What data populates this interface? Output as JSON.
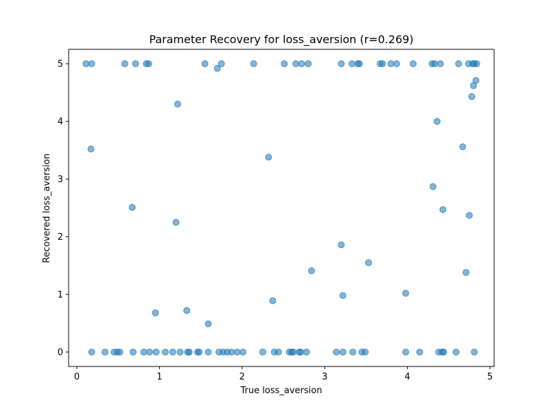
{
  "chart_data": {
    "type": "scatter",
    "title": "Parameter Recovery for loss_aversion (r=0.269)",
    "xlabel": "True loss_aversion",
    "ylabel": "Recovered loss_aversion",
    "xlim": [
      -0.1,
      5.05
    ],
    "ylim": [
      -0.25,
      5.25
    ],
    "xticks": [
      0,
      1,
      2,
      3,
      4,
      5
    ],
    "yticks": [
      0,
      1,
      2,
      3,
      4,
      5
    ],
    "grid": false,
    "marker_color": "#1f77b4",
    "marker_alpha": 0.55,
    "points": [
      {
        "x": 0.11,
        "y": 5.0
      },
      {
        "x": 0.18,
        "y": 5.0
      },
      {
        "x": 0.58,
        "y": 5.0
      },
      {
        "x": 0.71,
        "y": 5.0
      },
      {
        "x": 0.84,
        "y": 5.0
      },
      {
        "x": 0.87,
        "y": 5.0
      },
      {
        "x": 1.55,
        "y": 5.0
      },
      {
        "x": 1.75,
        "y": 5.0
      },
      {
        "x": 1.7,
        "y": 4.92
      },
      {
        "x": 2.14,
        "y": 5.0
      },
      {
        "x": 2.51,
        "y": 5.0
      },
      {
        "x": 2.65,
        "y": 5.0
      },
      {
        "x": 2.72,
        "y": 5.0
      },
      {
        "x": 2.8,
        "y": 5.0
      },
      {
        "x": 3.2,
        "y": 5.0
      },
      {
        "x": 3.33,
        "y": 5.0
      },
      {
        "x": 3.4,
        "y": 5.0
      },
      {
        "x": 3.42,
        "y": 5.0
      },
      {
        "x": 3.67,
        "y": 5.0
      },
      {
        "x": 3.7,
        "y": 5.0
      },
      {
        "x": 3.8,
        "y": 5.0
      },
      {
        "x": 3.87,
        "y": 5.0
      },
      {
        "x": 4.07,
        "y": 5.0
      },
      {
        "x": 4.3,
        "y": 5.0
      },
      {
        "x": 4.33,
        "y": 5.0
      },
      {
        "x": 4.4,
        "y": 5.0
      },
      {
        "x": 4.62,
        "y": 5.0
      },
      {
        "x": 4.74,
        "y": 5.0
      },
      {
        "x": 4.79,
        "y": 5.0
      },
      {
        "x": 4.81,
        "y": 5.0
      },
      {
        "x": 4.84,
        "y": 5.0
      },
      {
        "x": 4.83,
        "y": 4.71
      },
      {
        "x": 4.8,
        "y": 4.62
      },
      {
        "x": 4.78,
        "y": 4.43
      },
      {
        "x": 1.22,
        "y": 4.3
      },
      {
        "x": 4.36,
        "y": 4.0
      },
      {
        "x": 0.17,
        "y": 3.52
      },
      {
        "x": 4.67,
        "y": 3.56
      },
      {
        "x": 2.32,
        "y": 3.38
      },
      {
        "x": 4.31,
        "y": 2.87
      },
      {
        "x": 0.67,
        "y": 2.51
      },
      {
        "x": 4.43,
        "y": 2.47
      },
      {
        "x": 4.75,
        "y": 2.37
      },
      {
        "x": 1.2,
        "y": 2.25
      },
      {
        "x": 3.2,
        "y": 1.86
      },
      {
        "x": 3.53,
        "y": 1.55
      },
      {
        "x": 2.84,
        "y": 1.41
      },
      {
        "x": 4.71,
        "y": 1.38
      },
      {
        "x": 3.98,
        "y": 1.02
      },
      {
        "x": 3.22,
        "y": 0.98
      },
      {
        "x": 2.37,
        "y": 0.89
      },
      {
        "x": 1.33,
        "y": 0.72
      },
      {
        "x": 0.95,
        "y": 0.68
      },
      {
        "x": 1.59,
        "y": 0.49
      },
      {
        "x": 0.18,
        "y": 0.0
      },
      {
        "x": 0.34,
        "y": 0.0
      },
      {
        "x": 0.45,
        "y": 0.0
      },
      {
        "x": 0.49,
        "y": 0.0
      },
      {
        "x": 0.52,
        "y": 0.0
      },
      {
        "x": 0.68,
        "y": 0.0
      },
      {
        "x": 0.81,
        "y": 0.0
      },
      {
        "x": 0.88,
        "y": 0.0
      },
      {
        "x": 0.96,
        "y": 0.0
      },
      {
        "x": 1.07,
        "y": 0.0
      },
      {
        "x": 1.16,
        "y": 0.0
      },
      {
        "x": 1.25,
        "y": 0.0
      },
      {
        "x": 1.34,
        "y": 0.0
      },
      {
        "x": 1.36,
        "y": 0.0
      },
      {
        "x": 1.46,
        "y": 0.0
      },
      {
        "x": 1.48,
        "y": 0.0
      },
      {
        "x": 1.59,
        "y": 0.0
      },
      {
        "x": 1.72,
        "y": 0.0
      },
      {
        "x": 1.77,
        "y": 0.0
      },
      {
        "x": 1.82,
        "y": 0.0
      },
      {
        "x": 1.87,
        "y": 0.0
      },
      {
        "x": 1.94,
        "y": 0.0
      },
      {
        "x": 2.01,
        "y": 0.0
      },
      {
        "x": 2.25,
        "y": 0.0
      },
      {
        "x": 2.39,
        "y": 0.0
      },
      {
        "x": 2.44,
        "y": 0.0
      },
      {
        "x": 2.57,
        "y": 0.0
      },
      {
        "x": 2.6,
        "y": 0.0
      },
      {
        "x": 2.62,
        "y": 0.0
      },
      {
        "x": 2.69,
        "y": 0.0
      },
      {
        "x": 2.71,
        "y": 0.0
      },
      {
        "x": 2.78,
        "y": 0.0
      },
      {
        "x": 3.14,
        "y": 0.0
      },
      {
        "x": 3.22,
        "y": 0.0
      },
      {
        "x": 3.34,
        "y": 0.0
      },
      {
        "x": 3.45,
        "y": 0.0
      },
      {
        "x": 3.49,
        "y": 0.0
      },
      {
        "x": 3.98,
        "y": 0.0
      },
      {
        "x": 4.15,
        "y": 0.0
      },
      {
        "x": 4.38,
        "y": 0.0
      },
      {
        "x": 4.42,
        "y": 0.0
      },
      {
        "x": 4.44,
        "y": 0.0
      },
      {
        "x": 4.59,
        "y": 0.0
      },
      {
        "x": 4.81,
        "y": 0.0
      }
    ]
  }
}
